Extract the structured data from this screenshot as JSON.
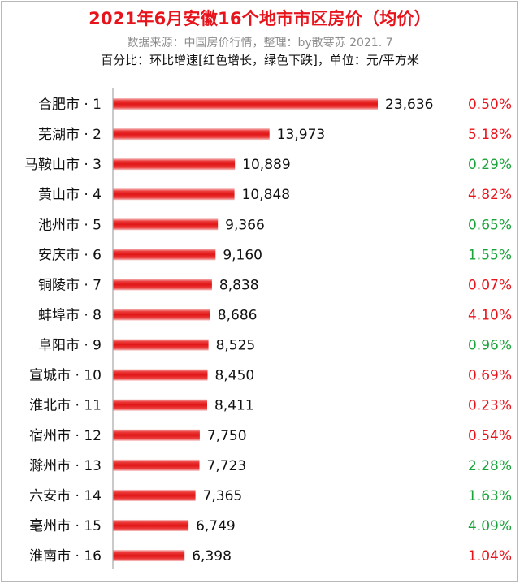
{
  "header": {
    "title": "2021年6月安徽16个地市市区房价（均价）",
    "source": "数据来源：中国房价行情，整理：by散寒苏  2021. 7",
    "note": "百分比：环比增速[红色增长，绿色下跌]，单位：元/平方米"
  },
  "colors": {
    "title": "#e8141c",
    "bar": "#e8141c",
    "increase": "#e8141c",
    "decrease": "#1aa33a",
    "axis": "#a6a6a6"
  },
  "chart_data": {
    "type": "bar",
    "orientation": "horizontal",
    "unit": "元/平方米",
    "xlim": [
      0,
      23636
    ],
    "grid": false,
    "categories": [
      "合肥市 · 1",
      "芜湖市 · 2",
      "马鞍山市 · 3",
      "黄山市 · 4",
      "池州市 · 5",
      "安庆市 · 6",
      "铜陵市 · 7",
      "蚌埠市 · 8",
      "阜阳市 · 9",
      "宣城市 · 10",
      "淮北市 · 11",
      "宿州市 · 12",
      "滁州市 · 13",
      "六安市 · 14",
      "亳州市 · 15",
      "淮南市 · 16"
    ],
    "values": [
      23636,
      13973,
      10889,
      10848,
      9366,
      9160,
      8838,
      8686,
      8525,
      8450,
      8411,
      7750,
      7723,
      7365,
      6749,
      6398
    ],
    "value_labels": [
      "23,636",
      "13,973",
      "10,889",
      "10,848",
      "9,366",
      "9,160",
      "8,838",
      "8,686",
      "8,525",
      "8,450",
      "8,411",
      "7,750",
      "7,723",
      "7,365",
      "6,749",
      "6,398"
    ],
    "mom_change": [
      "0.50%",
      "5.18%",
      "0.29%",
      "4.82%",
      "0.65%",
      "1.55%",
      "0.07%",
      "4.10%",
      "0.96%",
      "0.69%",
      "0.23%",
      "0.54%",
      "2.28%",
      "1.63%",
      "4.09%",
      "1.04%"
    ],
    "mom_color": [
      "increase",
      "increase",
      "decrease",
      "increase",
      "decrease",
      "decrease",
      "increase",
      "increase",
      "decrease",
      "increase",
      "increase",
      "increase",
      "decrease",
      "decrease",
      "decrease",
      "increase"
    ]
  }
}
